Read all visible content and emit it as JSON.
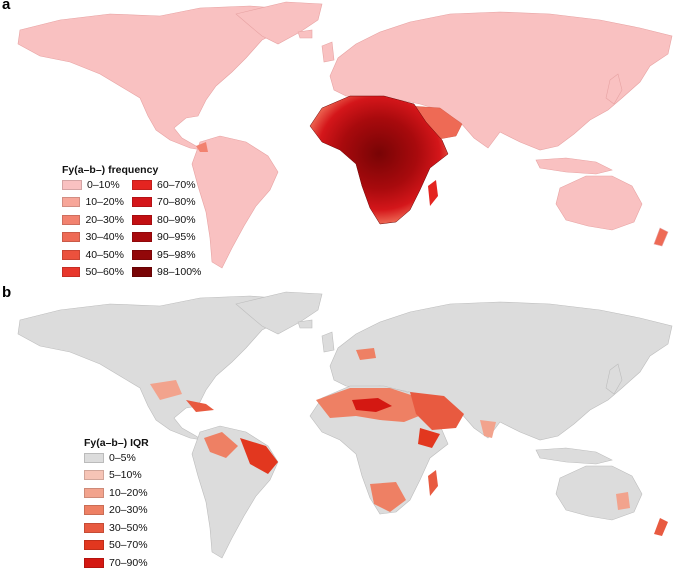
{
  "panel_a": {
    "label": "a",
    "legend_title": "Fy(a–b–) frequency",
    "legend": [
      {
        "label": "0–10%",
        "color": "#f9c1c1"
      },
      {
        "label": "10–20%",
        "color": "#f7a699"
      },
      {
        "label": "20–30%",
        "color": "#f2826f"
      },
      {
        "label": "30–40%",
        "color": "#ee6a55"
      },
      {
        "label": "40–50%",
        "color": "#eb513d"
      },
      {
        "label": "50–60%",
        "color": "#e8372c"
      },
      {
        "label": "60–70%",
        "color": "#e42420"
      },
      {
        "label": "70–80%",
        "color": "#d4161a"
      },
      {
        "label": "80–90%",
        "color": "#c20f12"
      },
      {
        "label": "90–95%",
        "color": "#a80a0d"
      },
      {
        "label": "95–98%",
        "color": "#920709"
      },
      {
        "label": "98–100%",
        "color": "#780405"
      }
    ]
  },
  "panel_b": {
    "label": "b",
    "legend_title": "Fy(a–b–) IQR",
    "legend": [
      {
        "label": "0–5%",
        "color": "#dcdcdc"
      },
      {
        "label": "5–10%",
        "color": "#f6c4b6"
      },
      {
        "label": "10–20%",
        "color": "#f2a38d"
      },
      {
        "label": "20–30%",
        "color": "#ee8064"
      },
      {
        "label": "30–50%",
        "color": "#e85a40"
      },
      {
        "label": "50–70%",
        "color": "#e2371f"
      },
      {
        "label": "70–90%",
        "color": "#d41812"
      }
    ]
  }
}
